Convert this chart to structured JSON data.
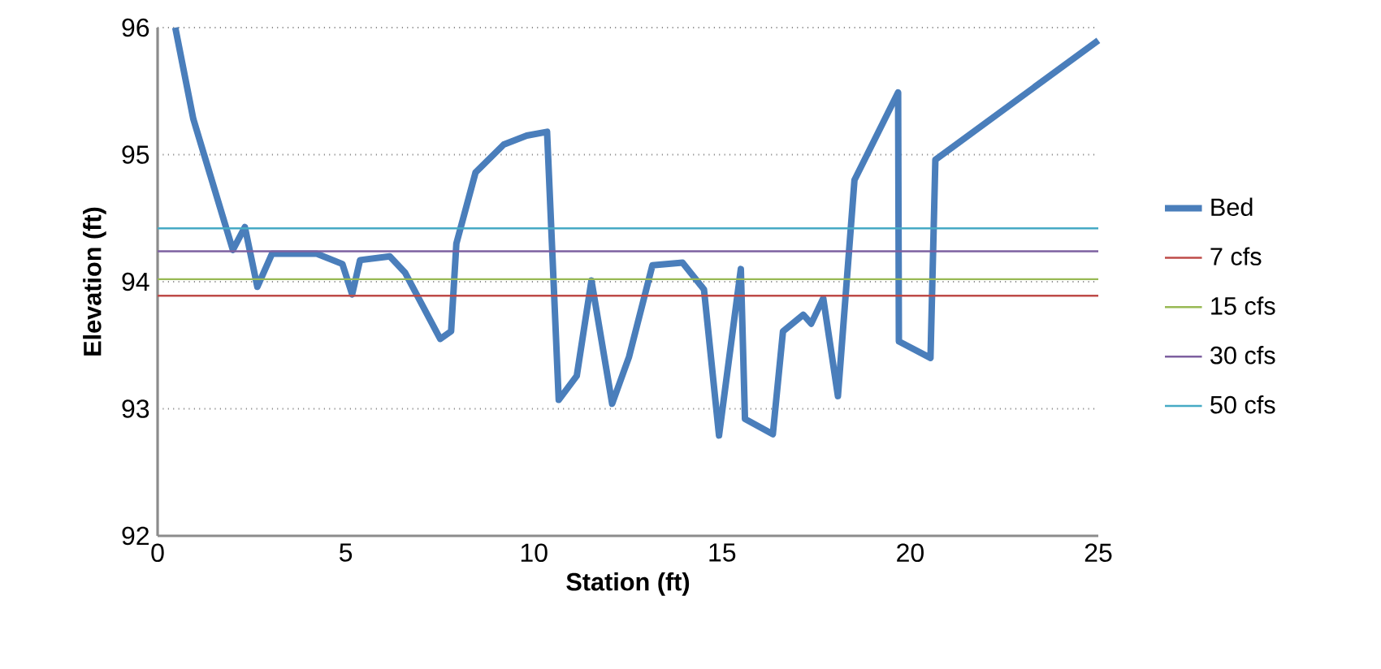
{
  "chart_data": {
    "type": "line",
    "xlabel": "Station (ft)",
    "ylabel": "Elevation (ft)",
    "xlim": [
      0,
      25
    ],
    "ylim": [
      92,
      96
    ],
    "xticks": [
      0,
      5,
      10,
      15,
      20,
      25
    ],
    "yticks": [
      92,
      93,
      94,
      95,
      96
    ],
    "grid": "y",
    "legend": "right",
    "marker": "none",
    "line_style": "solid",
    "series": [
      {
        "name": "Bed",
        "color": "#4a7ebb",
        "x": [
          0.47,
          0.95,
          2.0,
          2.32,
          2.65,
          3.04,
          4.23,
          4.91,
          5.17,
          5.38,
          6.17,
          6.58,
          7.51,
          7.8,
          7.94,
          8.45,
          9.2,
          9.81,
          10.35,
          10.66,
          11.14,
          11.53,
          12.08,
          12.53,
          13.15,
          13.95,
          14.52,
          14.92,
          15.5,
          15.61,
          16.35,
          16.62,
          17.16,
          17.37,
          17.69,
          18.08,
          18.52,
          19.68,
          19.7,
          20.54,
          20.67,
          25
        ],
        "values": [
          96.0,
          95.28,
          94.25,
          94.43,
          93.96,
          94.22,
          94.22,
          94.14,
          93.9,
          94.17,
          94.2,
          94.07,
          93.55,
          93.61,
          94.3,
          94.86,
          95.08,
          95.15,
          95.18,
          93.07,
          93.26,
          94.01,
          93.04,
          93.41,
          94.13,
          94.15,
          93.94,
          92.79,
          94.1,
          92.92,
          92.8,
          93.61,
          93.74,
          93.67,
          93.87,
          93.1,
          94.8,
          95.49,
          93.53,
          93.4,
          94.96,
          95.9
        ]
      },
      {
        "name": "7 cfs",
        "color": "#be4b48",
        "x": [
          0,
          25
        ],
        "values": [
          93.89,
          93.89
        ]
      },
      {
        "name": "15 cfs",
        "color": "#98b954",
        "x": [
          0,
          25
        ],
        "values": [
          94.02,
          94.02
        ]
      },
      {
        "name": "30 cfs",
        "color": "#7d60a0",
        "x": [
          0,
          25
        ],
        "values": [
          94.24,
          94.24
        ]
      },
      {
        "name": "50 cfs",
        "color": "#46aac5",
        "x": [
          0,
          25
        ],
        "values": [
          94.42,
          94.42
        ]
      }
    ]
  }
}
